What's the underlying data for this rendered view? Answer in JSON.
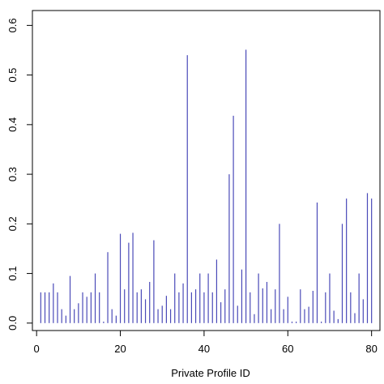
{
  "chart_data": {
    "type": "bar",
    "style": "vertical lines (type h)",
    "title": "",
    "xlabel": "Private Profile ID",
    "ylabel": "",
    "xlim": [
      -1,
      82
    ],
    "ylim": [
      -0.015,
      0.63
    ],
    "x_ticks": [
      0,
      20,
      40,
      60,
      80
    ],
    "y_ticks": [
      0.0,
      0.1,
      0.2,
      0.3,
      0.4,
      0.5,
      0.6
    ],
    "x_tick_labels": [
      "0",
      "20",
      "40",
      "60",
      "80"
    ],
    "y_tick_labels": [
      "0.0",
      "0.1",
      "0.2",
      "0.3",
      "0.4",
      "0.5",
      "0.6"
    ],
    "grid": false,
    "color": "#4a4ab8",
    "x": [
      1,
      2,
      3,
      4,
      5,
      6,
      7,
      8,
      9,
      10,
      11,
      12,
      13,
      14,
      15,
      16,
      17,
      18,
      19,
      20,
      21,
      22,
      23,
      24,
      25,
      26,
      27,
      28,
      29,
      30,
      31,
      32,
      33,
      34,
      35,
      36,
      37,
      38,
      39,
      40,
      41,
      42,
      43,
      44,
      45,
      46,
      47,
      48,
      49,
      50,
      51,
      52,
      53,
      54,
      55,
      56,
      57,
      58,
      59,
      60,
      61,
      62,
      63,
      64,
      65,
      66,
      67,
      68,
      69,
      70,
      71,
      72,
      73,
      74,
      75,
      76,
      77,
      78,
      79,
      80
    ],
    "values": [
      0.062,
      0.062,
      0.062,
      0.08,
      0.062,
      0.028,
      0.015,
      0.095,
      0.028,
      0.04,
      0.062,
      0.053,
      0.062,
      0.1,
      0.062,
      0.003,
      0.143,
      0.028,
      0.015,
      0.18,
      0.068,
      0.162,
      0.182,
      0.062,
      0.068,
      0.048,
      0.083,
      0.167,
      0.028,
      0.035,
      0.055,
      0.028,
      0.1,
      0.062,
      0.08,
      0.54,
      0.062,
      0.068,
      0.1,
      0.062,
      0.1,
      0.062,
      0.128,
      0.042,
      0.068,
      0.3,
      0.418,
      0.035,
      0.108,
      0.551,
      0.062,
      0.018,
      0.1,
      0.07,
      0.083,
      0.028,
      0.068,
      0.2,
      0.028,
      0.053,
      0.003,
      0.003,
      0.068,
      0.028,
      0.033,
      0.065,
      0.243,
      0.003,
      0.062,
      0.1,
      0.025,
      0.008,
      0.2,
      0.251,
      0.062,
      0.02,
      0.1,
      0.048,
      0.262,
      0.251
    ]
  }
}
